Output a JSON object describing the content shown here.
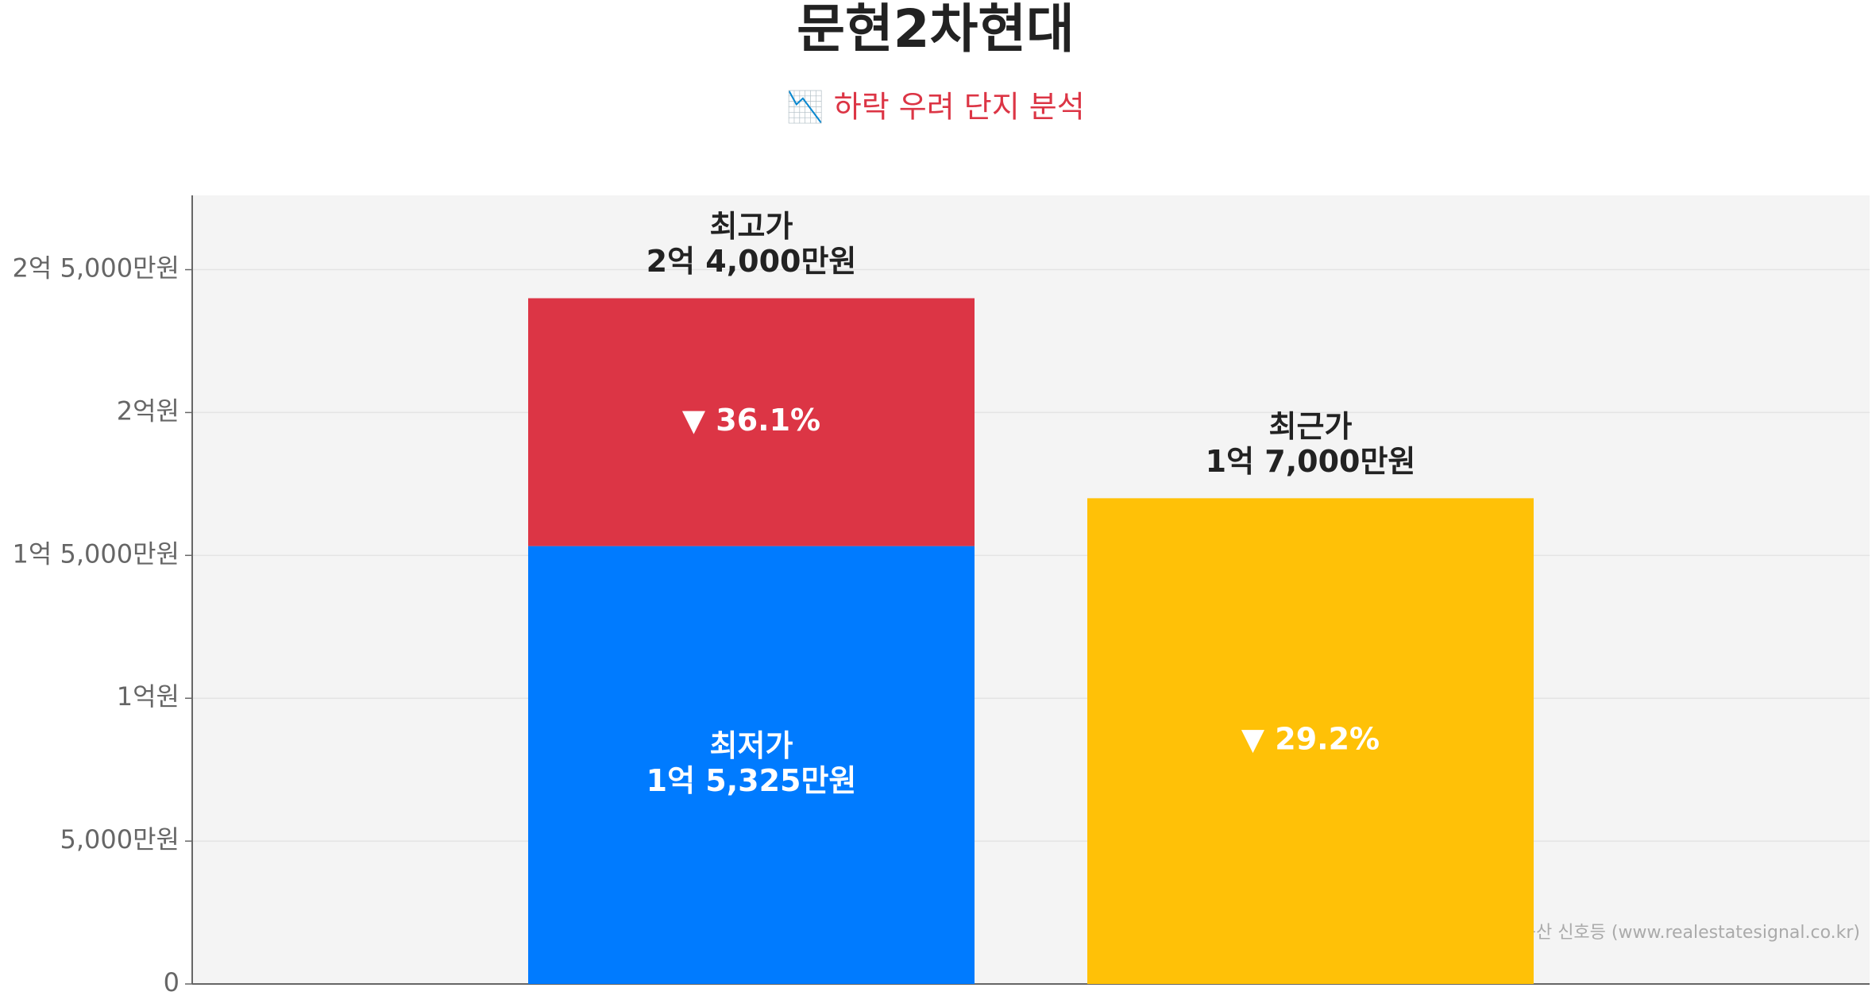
{
  "chart_data": {
    "type": "bar",
    "stacked": true,
    "title": "문현2차현대",
    "subtitle": "📉 하락 우려 단지 분석",
    "categories": [
      null,
      null
    ],
    "series": [
      {
        "name": "최저가",
        "color": "#007bff",
        "values": [
          153250000,
          null
        ],
        "value_labels": [
          "1억 5,325만원",
          null
        ]
      },
      {
        "color": "#dc3545",
        "values": [
          86750000,
          null
        ]
      },
      {
        "color": "#ffc107",
        "values": [
          null,
          170000000
        ]
      }
    ],
    "top_labels": [
      {
        "name": "최고가",
        "text": "2억 4,000만원"
      },
      {
        "name": "최근가",
        "text": "1억 7,000만원"
      }
    ],
    "change_labels": [
      "▼ 36.1%",
      "▼ 29.2%"
    ],
    "ylim": [
      0,
      276000000
    ],
    "yticks": [
      0,
      {
        "value": 50000000,
        "label": "5,000만원"
      },
      {
        "value": 100000000,
        "label": "1억원"
      },
      {
        "value": 150000000,
        "label": "1억 5,000만원"
      },
      {
        "value": 200000000,
        "label": "2억원"
      },
      {
        "value": 250000000,
        "label": "2억 5,000만원"
      }
    ],
    "grid": true,
    "source": "Source: 부동산 신호등 (www.realestatesignal.co.kr)"
  }
}
